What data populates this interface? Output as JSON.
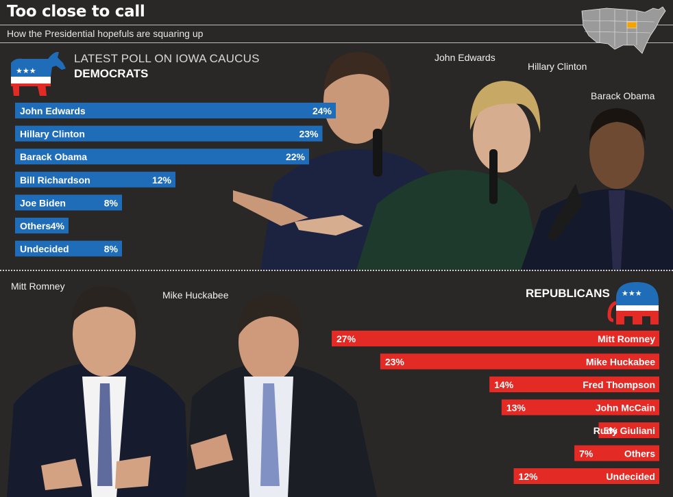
{
  "header": {
    "title": "Too close to call",
    "subtitle": "How the Presidential hopefuls are squaring up"
  },
  "democrats": {
    "heading_line1": "LATEST POLL ON IOWA CAUCUS",
    "heading_line2": "DEMOCRATS"
  },
  "republicans": {
    "heading": "REPUBLICANS"
  },
  "photo_labels": {
    "edwards": "John Edwards",
    "clinton": "Hillary Clinton",
    "obama": "Barack Obama",
    "romney": "Mitt Romney",
    "huckabee": "Mike Huckabee"
  },
  "colors": {
    "background": "#2a2727",
    "democrat_bar": "#1f6db8",
    "republican_bar": "#e42a24",
    "map_highlight": "#f5a300"
  },
  "icons": [
    "democrat-donkey-icon",
    "republican-elephant-icon",
    "us-map-icon"
  ],
  "chart_data": [
    {
      "type": "bar",
      "orientation": "horizontal",
      "title": "DEMOCRATS",
      "categories": [
        "John Edwards",
        "Hillary Clinton",
        "Barack Obama",
        "Bill Richardson",
        "Joe Biden",
        "Others",
        "Undecided"
      ],
      "values": [
        24,
        23,
        22,
        12,
        8,
        4,
        8
      ],
      "value_labels": [
        "24%",
        "23%",
        "22%",
        "12%",
        "8%",
        "4%",
        "8%"
      ],
      "unit": "%",
      "xlim": [
        0,
        27
      ],
      "bar_direction": "left-to-right"
    },
    {
      "type": "bar",
      "orientation": "horizontal",
      "title": "REPUBLICANS",
      "categories": [
        "Mitt Romney",
        "Mike Huckabee",
        "Fred Thompson",
        "John McCain",
        "Rudy Giuliani",
        "Others",
        "Undecided"
      ],
      "values": [
        27,
        23,
        14,
        13,
        5,
        7,
        12
      ],
      "value_labels": [
        "27%",
        "23%",
        "14%",
        "13%",
        "5%",
        "7%",
        "12%"
      ],
      "unit": "%",
      "xlim": [
        0,
        27
      ],
      "bar_direction": "right-to-left"
    }
  ]
}
